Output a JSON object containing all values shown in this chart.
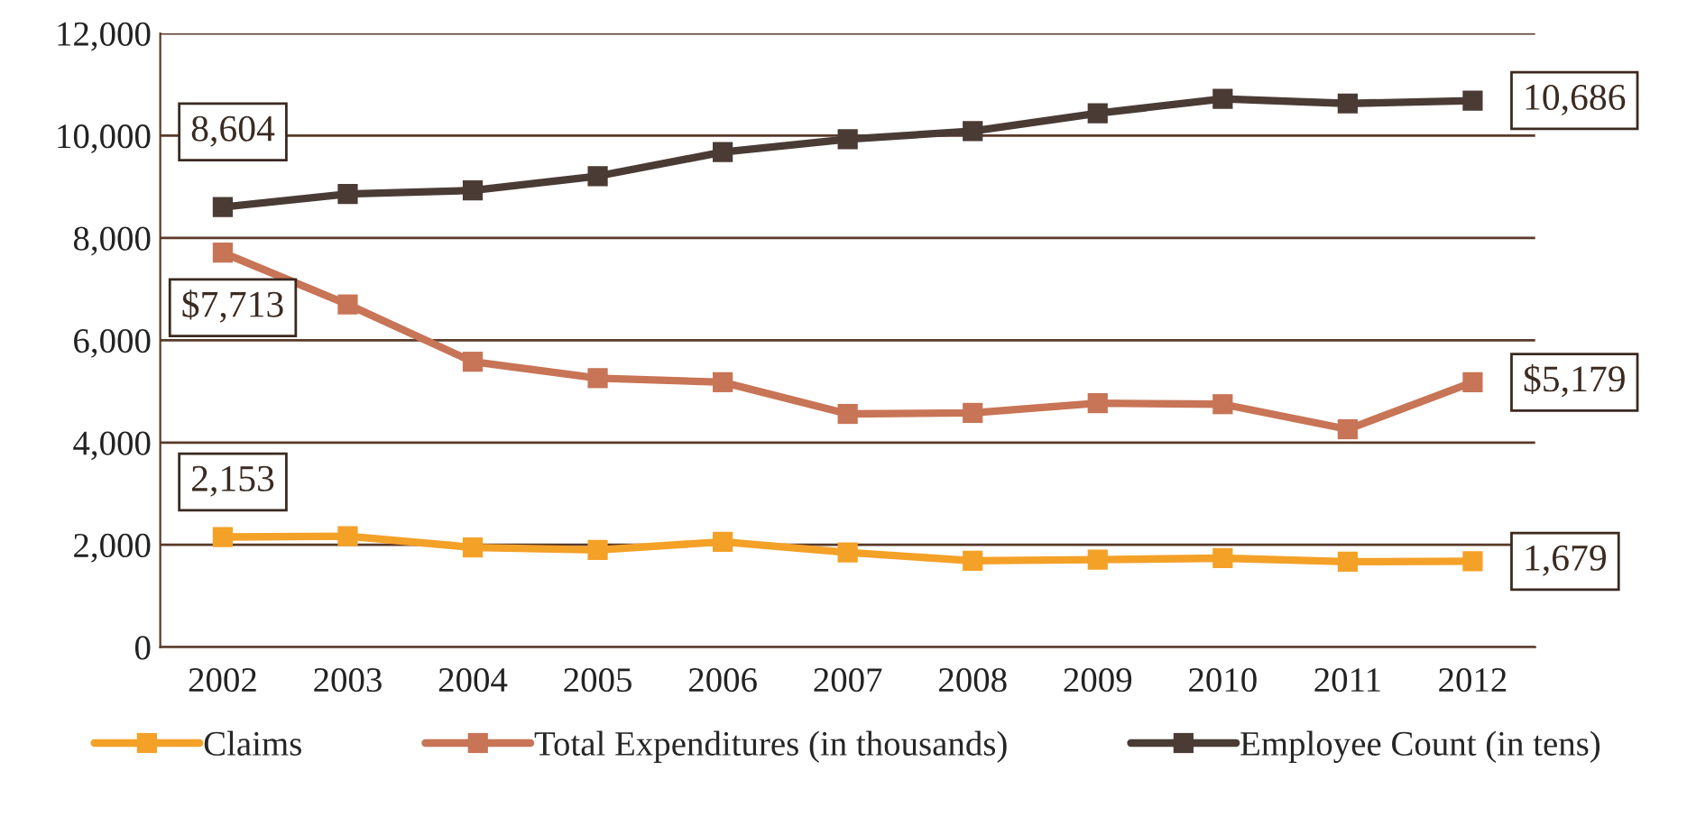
{
  "chart_data": {
    "type": "line",
    "categories": [
      "2002",
      "2003",
      "2004",
      "2005",
      "2006",
      "2007",
      "2008",
      "2009",
      "2010",
      "2011",
      "2012"
    ],
    "series": [
      {
        "name": "Claims",
        "color": "#f4a128",
        "values": [
          2153,
          2170,
          1950,
          1900,
          2060,
          1850,
          1690,
          1710,
          1740,
          1670,
          1679
        ],
        "value_labels": [
          "2,153",
          null,
          null,
          null,
          null,
          null,
          null,
          null,
          null,
          null,
          "1,679"
        ]
      },
      {
        "name": "Total Expenditures (in thousands)",
        "color": "#c87456",
        "values": [
          7713,
          6700,
          5580,
          5260,
          5180,
          4560,
          4580,
          4770,
          4750,
          4260,
          5179
        ],
        "value_labels": [
          "$7,713",
          null,
          null,
          null,
          null,
          null,
          null,
          null,
          null,
          null,
          "$5,179"
        ]
      },
      {
        "name": "Employee Count (in tens)",
        "color": "#4a3b35",
        "values": [
          8604,
          8860,
          8930,
          9210,
          9680,
          9930,
          10090,
          10440,
          10720,
          10630,
          10686
        ],
        "value_labels": [
          "8,604",
          null,
          null,
          null,
          null,
          null,
          null,
          null,
          null,
          null,
          "10,686"
        ]
      }
    ],
    "ylim": [
      0,
      12000
    ],
    "yticks": [
      {
        "value": 0,
        "label": "0"
      },
      {
        "value": 2000,
        "label": "2,000"
      },
      {
        "value": 4000,
        "label": "4,000"
      },
      {
        "value": 6000,
        "label": "6,000"
      },
      {
        "value": 8000,
        "label": "8,000"
      },
      {
        "value": 10000,
        "label": "10,000"
      },
      {
        "value": 12000,
        "label": "12,000"
      }
    ],
    "grid": "y",
    "legend": "bottom",
    "marker": "square",
    "line_style": "solid"
  }
}
